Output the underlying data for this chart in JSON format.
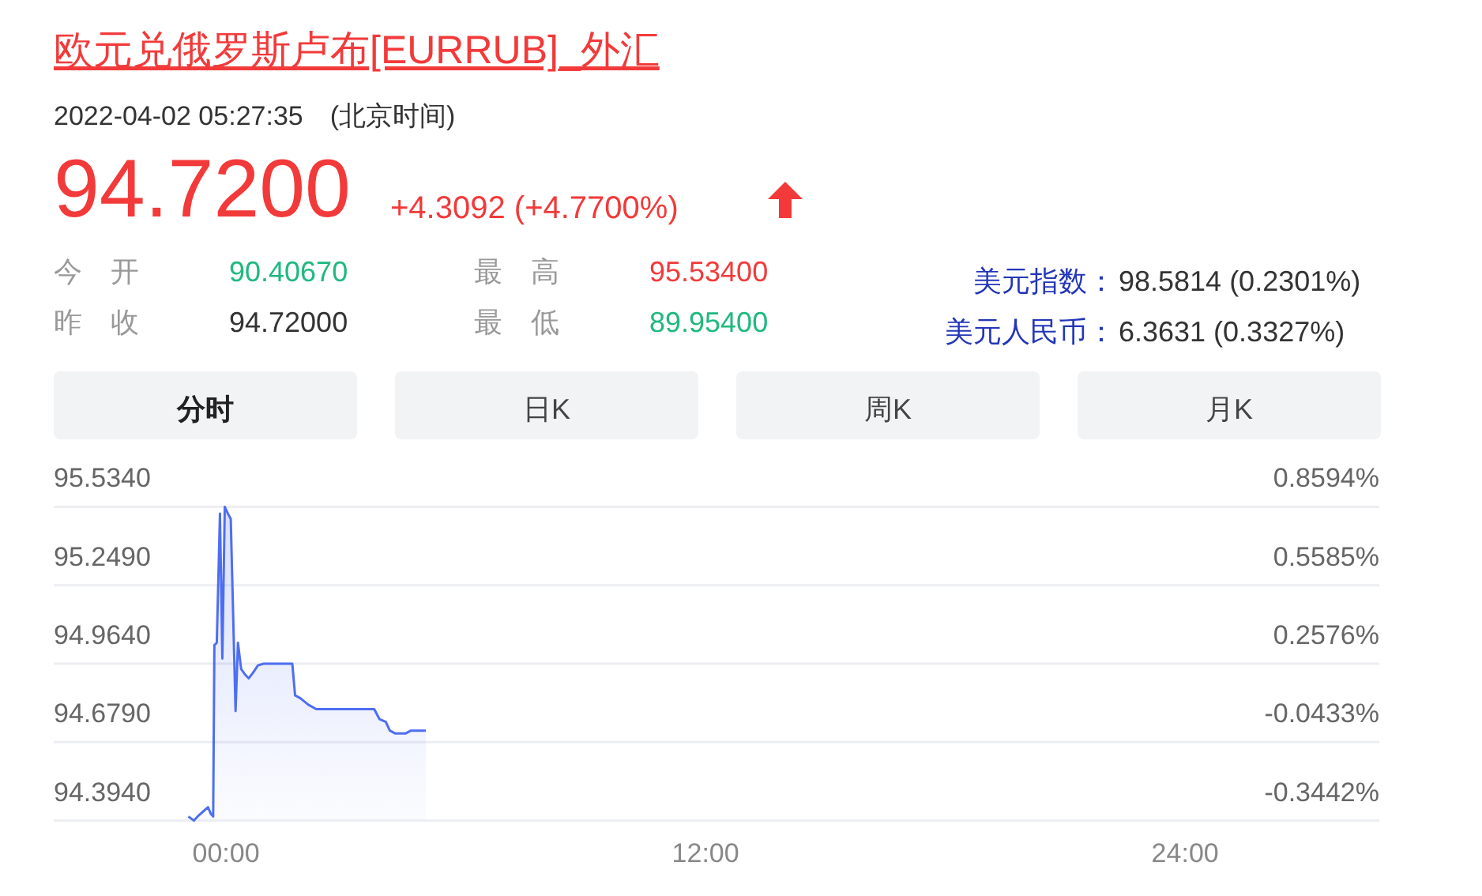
{
  "chart_data": {
    "type": "area",
    "title": "欧元兑俄罗斯卢布[EURRUB]_外汇",
    "subtitle": "2022-04-02 05:27:35　(北京时间)",
    "annotations": [
      "94.7200",
      "+4.3092 (+4.7700%)",
      "今　开",
      "90.40670",
      "最　高",
      "95.53400",
      "昨　收",
      "94.72000",
      "最　低",
      "89.95400",
      "美元指数：",
      "98.5814 (0.2301%)",
      "美元人民币：",
      "6.3631 (0.3327%)",
      "分时",
      "日K",
      "周K",
      "月K"
    ],
    "x": [
      -0.94,
      -0.8,
      -0.71,
      -0.45,
      -0.38,
      -0.32,
      -0.29,
      -0.23,
      -0.15,
      -0.09,
      -0.03,
      0.05,
      0.12,
      0.24,
      0.3,
      0.38,
      0.47,
      0.57,
      0.67,
      0.8,
      0.94,
      1.66,
      1.73,
      1.86,
      2.06,
      2.26,
      3.71,
      3.84,
      4.0,
      4.1,
      4.23,
      4.5,
      4.63,
      5.0
    ],
    "series": [
      {
        "color": "#4e6ef2",
        "values": [
          94.409,
          94.394,
          94.409,
          94.443,
          94.419,
          94.409,
          95.031,
          95.04,
          95.509,
          94.983,
          95.534,
          95.509,
          95.49,
          94.792,
          95.04,
          94.945,
          94.926,
          94.911,
          94.93,
          94.958,
          94.964,
          94.964,
          94.849,
          94.839,
          94.815,
          94.799,
          94.799,
          94.763,
          94.753,
          94.721,
          94.711,
          94.711,
          94.721,
          94.721
        ]
      }
    ],
    "xlim": [
      -4.31,
      28.86
    ],
    "xticks": [
      {
        "value": 0,
        "label": "00:00"
      },
      {
        "value": 12,
        "label": "12:00"
      },
      {
        "value": 24,
        "label": "24:00"
      }
    ],
    "ylim": [
      94.394,
      95.534
    ],
    "yticks": [
      {
        "value": 94.394,
        "label": "94.3940"
      },
      {
        "value": 94.679,
        "label": "94.6790"
      },
      {
        "value": 94.964,
        "label": "94.9640"
      },
      {
        "value": 95.249,
        "label": "95.2490"
      },
      {
        "value": 95.534,
        "label": "95.5340"
      }
    ],
    "y2lim": [
      -0.3442,
      0.8594
    ],
    "y2ticks": [
      {
        "value": -0.3442,
        "label": "-0.3442%"
      },
      {
        "value": -0.0433,
        "label": "-0.0433%"
      },
      {
        "value": 0.2576,
        "label": "0.2576%"
      },
      {
        "value": 0.5585,
        "label": "0.5585%"
      },
      {
        "value": 0.8594,
        "label": "0.8594%"
      }
    ],
    "grid": "y",
    "marker": "none",
    "line_style": "solid"
  }
}
